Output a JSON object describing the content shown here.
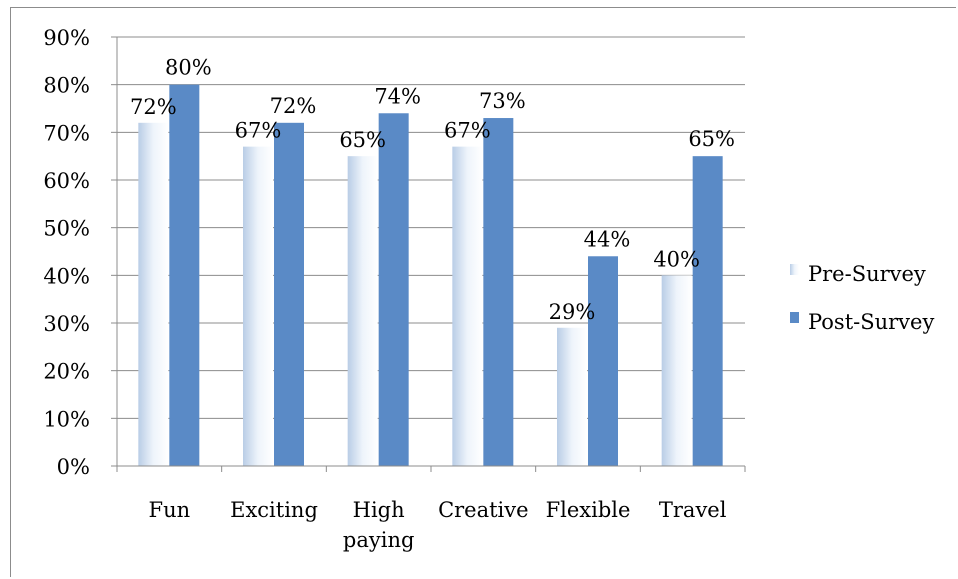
{
  "chart_data": {
    "type": "bar",
    "categories": [
      [
        "Fun"
      ],
      [
        "Exciting"
      ],
      [
        "High",
        "paying"
      ],
      [
        "Creative"
      ],
      [
        "Flexible"
      ],
      [
        "Travel"
      ]
    ],
    "series": [
      {
        "name": "Pre-Survey",
        "values": [
          72,
          67,
          65,
          67,
          29,
          40
        ],
        "labels": [
          "72%",
          "67%",
          "65%",
          "67%",
          "29%",
          "40%"
        ],
        "color": "#c5d9f1"
      },
      {
        "name": "Post-Survey",
        "values": [
          80,
          72,
          74,
          73,
          44,
          65
        ],
        "labels": [
          "80%",
          "72%",
          "74%",
          "73%",
          "44%",
          "65%"
        ],
        "color": "#4f81bd"
      }
    ],
    "yticks": [
      "0%",
      "10%",
      "20%",
      "30%",
      "40%",
      "50%",
      "60%",
      "70%",
      "80%",
      "90%"
    ],
    "ylim": [
      0,
      90
    ],
    "grid": true,
    "legend": "right",
    "colors": {
      "pre_light": "#eef4fb",
      "pre_dark": "#b8cce4",
      "post": "#5a8ac6",
      "grid": "#8c8c8c"
    }
  }
}
